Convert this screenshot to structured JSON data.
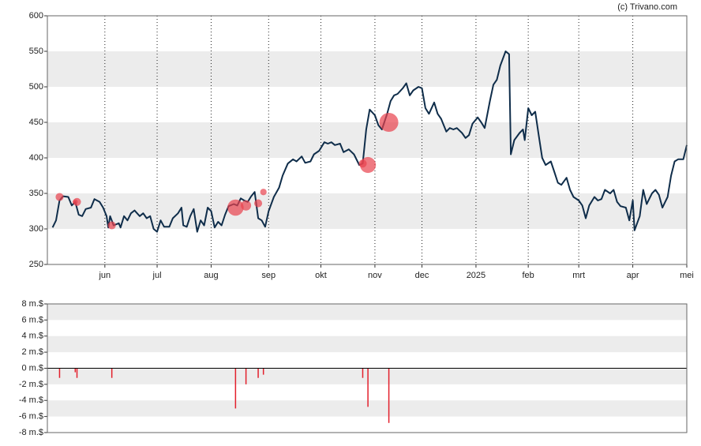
{
  "chart_data": [
    {
      "type": "line",
      "credit": "(c) Trivano.com",
      "color": "#0f2d4a",
      "xlim": [
        -3,
        364
      ],
      "ylim": [
        250,
        600
      ],
      "yticks": [
        250,
        300,
        350,
        400,
        450,
        500,
        550,
        600
      ],
      "xticks": [
        {
          "value": 30,
          "label": "jun"
        },
        {
          "value": 60,
          "label": "jul"
        },
        {
          "value": 91,
          "label": "aug"
        },
        {
          "value": 124,
          "label": "sep"
        },
        {
          "value": 154,
          "label": "okt"
        },
        {
          "value": 185,
          "label": "nov"
        },
        {
          "value": 212,
          "label": "dec"
        },
        {
          "value": 243,
          "label": "2025"
        },
        {
          "value": 273,
          "label": "feb"
        },
        {
          "value": 302,
          "label": "mrt"
        },
        {
          "value": 333,
          "label": "apr"
        },
        {
          "value": 364,
          "label": "mei"
        }
      ],
      "grid": true,
      "x": [
        0,
        2,
        4,
        6,
        9,
        11,
        13,
        15,
        17,
        19,
        22,
        24,
        27,
        29,
        31,
        32,
        33,
        35,
        38,
        39,
        41,
        43,
        45,
        47,
        50,
        52,
        54,
        56,
        58,
        60,
        62,
        64,
        67,
        69,
        72,
        74,
        75,
        77,
        79,
        81,
        83,
        85,
        87,
        89,
        91,
        93,
        95,
        97,
        99,
        101,
        104,
        106,
        108,
        110,
        112,
        114,
        116,
        118,
        120,
        122,
        124,
        127,
        130,
        132,
        135,
        138,
        140,
        143,
        145,
        148,
        150,
        153,
        156,
        158,
        160,
        162,
        165,
        167,
        170,
        173,
        176,
        178,
        180,
        182,
        185,
        187,
        189,
        192,
        194,
        196,
        198,
        201,
        203,
        205,
        207,
        210,
        212,
        214,
        216,
        219,
        221,
        223,
        226,
        228,
        230,
        232,
        235,
        237,
        239,
        241,
        244,
        246,
        248,
        251,
        253,
        255,
        257,
        260,
        262,
        263,
        265,
        268,
        270,
        271,
        273,
        275,
        277,
        279,
        281,
        283,
        286,
        288,
        290,
        292,
        295,
        297,
        299,
        302,
        304,
        306,
        308,
        311,
        313,
        315,
        317,
        320,
        322,
        324,
        326,
        329,
        331,
        333,
        334,
        337,
        339,
        341,
        344,
        346,
        348,
        350,
        353,
        355,
        357,
        359,
        362,
        364
      ],
      "values": [
        302,
        312,
        340,
        346,
        345,
        333,
        338,
        320,
        318,
        328,
        330,
        342,
        338,
        330,
        318,
        302,
        318,
        305,
        308,
        302,
        318,
        312,
        322,
        326,
        318,
        322,
        315,
        318,
        300,
        296,
        312,
        303,
        303,
        315,
        322,
        330,
        305,
        303,
        318,
        328,
        296,
        312,
        305,
        330,
        325,
        302,
        310,
        305,
        320,
        332,
        335,
        333,
        343,
        340,
        338,
        346,
        352,
        315,
        312,
        303,
        325,
        345,
        358,
        375,
        392,
        398,
        395,
        402,
        393,
        395,
        405,
        410,
        422,
        420,
        422,
        418,
        420,
        408,
        412,
        405,
        390,
        392,
        440,
        468,
        460,
        446,
        440,
        462,
        480,
        488,
        490,
        498,
        505,
        488,
        495,
        500,
        498,
        470,
        462,
        478,
        462,
        455,
        437,
        442,
        440,
        442,
        435,
        428,
        432,
        448,
        457,
        450,
        442,
        480,
        503,
        510,
        530,
        550,
        546,
        405,
        425,
        435,
        440,
        425,
        470,
        460,
        465,
        432,
        400,
        390,
        395,
        380,
        365,
        362,
        372,
        355,
        345,
        340,
        333,
        315,
        333,
        345,
        340,
        342,
        355,
        350,
        355,
        338,
        332,
        330,
        312,
        340,
        298,
        318,
        355,
        335,
        350,
        355,
        348,
        330,
        345,
        375,
        395,
        398,
        398,
        418
      ],
      "trades": {
        "color": "#e8414d",
        "x": [
          4,
          13,
          14,
          34,
          105,
          111,
          118,
          121,
          178,
          181,
          193
        ],
        "values": [
          345,
          338,
          338,
          305,
          330,
          333,
          336,
          352,
          392,
          390,
          450
        ]
      }
    },
    {
      "type": "bar",
      "color": "#e3202c",
      "xlim": [
        -3,
        364
      ],
      "ylim": [
        -8,
        8
      ],
      "yticks": [
        {
          "value": -8,
          "label": "-8 m.$"
        },
        {
          "value": -6,
          "label": "-6 m.$"
        },
        {
          "value": -4,
          "label": "-4 m.$"
        },
        {
          "value": -2,
          "label": "-2 m.$"
        },
        {
          "value": 0,
          "label": "0 m.$"
        },
        {
          "value": 2,
          "label": "2 m.$"
        },
        {
          "value": 4,
          "label": "4 m.$"
        },
        {
          "value": 6,
          "label": "6 m.$"
        },
        {
          "value": 8,
          "label": "8 m.$"
        }
      ],
      "x": [
        4,
        13,
        14,
        34,
        105,
        111,
        118,
        121,
        178,
        181,
        193
      ],
      "values": [
        -1.2,
        -0.5,
        -1.2,
        -1.2,
        -5,
        -2,
        -1.2,
        -0.8,
        -1.2,
        -4.8,
        -6.8
      ]
    }
  ]
}
